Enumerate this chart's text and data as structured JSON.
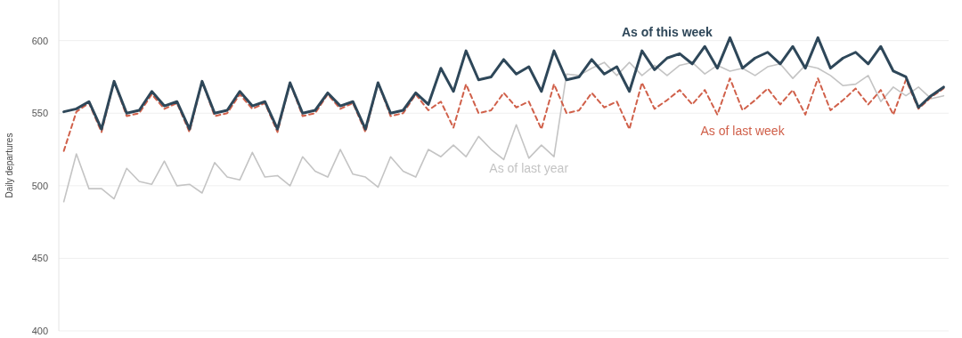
{
  "chart_data": {
    "type": "line",
    "ylabel": "Daily departures",
    "ylim": [
      400,
      628
    ],
    "yticks": [
      400,
      450,
      500,
      550,
      600
    ],
    "grid": "y",
    "categories": [
      null,
      null,
      null,
      null,
      null,
      null,
      null,
      null,
      null,
      null,
      null,
      null,
      null,
      null,
      null,
      null,
      null,
      null,
      null,
      null,
      null,
      null,
      null,
      null,
      null,
      null,
      null,
      null,
      null,
      null,
      null,
      null,
      null,
      null,
      null,
      null,
      null,
      null,
      null,
      null,
      null,
      null,
      null,
      null,
      null,
      null,
      null,
      null,
      null,
      null,
      null,
      null,
      null,
      null,
      null,
      null,
      null,
      null,
      null,
      null,
      null,
      null,
      null,
      null,
      null,
      null,
      null,
      null,
      null,
      null,
      null
    ],
    "series": [
      {
        "name": "As of last year",
        "color": "#c4c4c4",
        "line_style": "solid",
        "values": [
          489,
          522,
          498,
          498,
          491,
          512,
          503,
          501,
          517,
          500,
          501,
          495,
          516,
          506,
          504,
          523,
          506,
          507,
          500,
          520,
          510,
          506,
          525,
          508,
          506,
          499,
          520,
          510,
          506,
          525,
          520,
          528,
          520,
          534,
          525,
          518,
          542,
          519,
          528,
          520,
          577,
          576,
          581,
          585,
          576,
          585,
          576,
          583,
          576,
          583,
          585,
          577,
          583,
          579,
          581,
          576,
          582,
          584,
          574,
          583,
          581,
          576,
          569,
          570,
          576,
          558,
          568,
          562,
          568,
          560,
          562
        ]
      },
      {
        "name": "As of last week",
        "color": "#d0604a",
        "line_style": "dashed",
        "values": [
          524,
          551,
          557,
          537,
          572,
          548,
          550,
          563,
          553,
          557,
          537,
          572,
          548,
          550,
          563,
          553,
          557,
          537,
          571,
          548,
          550,
          563,
          553,
          557,
          537,
          571,
          548,
          550,
          563,
          552,
          558,
          540,
          570,
          550,
          552,
          564,
          554,
          558,
          539,
          570,
          550,
          552,
          564,
          554,
          558,
          539,
          571,
          553,
          559,
          566,
          556,
          566,
          549,
          574,
          552,
          559,
          567,
          556,
          566,
          549,
          574,
          552,
          559,
          567,
          556,
          566,
          549,
          573,
          553,
          561,
          567
        ]
      },
      {
        "name": "As of this week",
        "color": "#2e4759",
        "line_style": "solid",
        "values": [
          551,
          553,
          558,
          539,
          572,
          550,
          552,
          565,
          555,
          558,
          539,
          572,
          550,
          552,
          565,
          555,
          558,
          539,
          571,
          550,
          552,
          564,
          555,
          558,
          539,
          571,
          550,
          552,
          564,
          556,
          581,
          565,
          593,
          573,
          575,
          587,
          577,
          582,
          565,
          593,
          573,
          575,
          587,
          577,
          582,
          565,
          593,
          580,
          588,
          591,
          584,
          596,
          581,
          602,
          581,
          588,
          592,
          584,
          596,
          581,
          602,
          581,
          588,
          592,
          584,
          596,
          579,
          575,
          554,
          562,
          568
        ]
      }
    ]
  }
}
